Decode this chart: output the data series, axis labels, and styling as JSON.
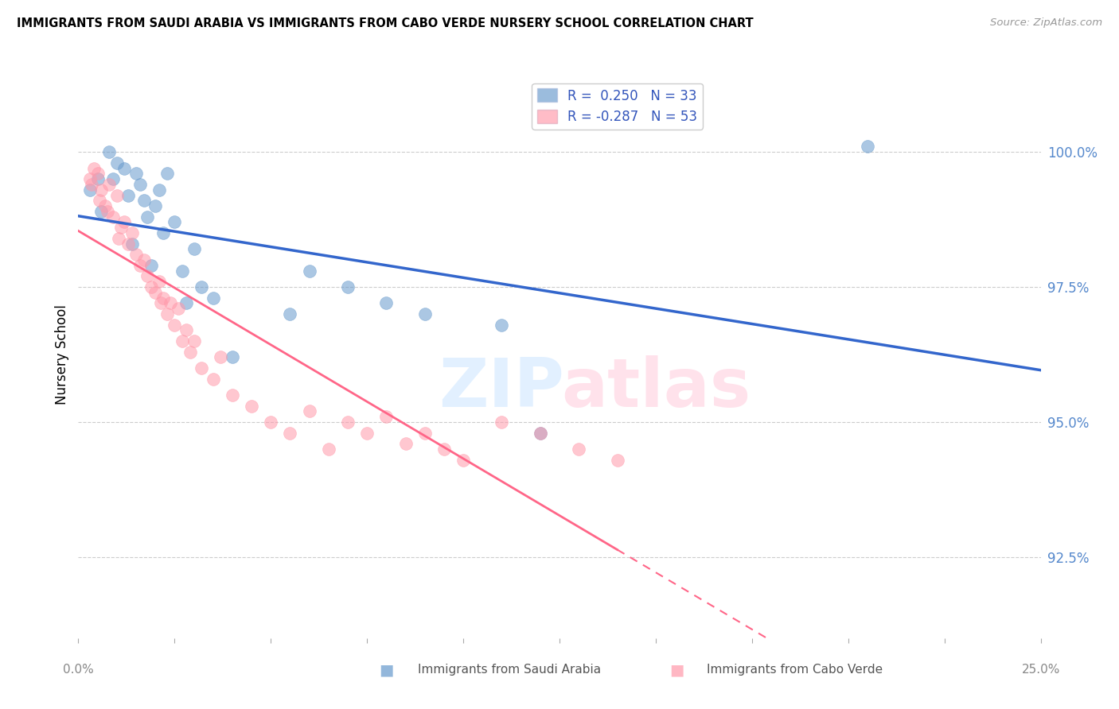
{
  "title": "IMMIGRANTS FROM SAUDI ARABIA VS IMMIGRANTS FROM CABO VERDE NURSERY SCHOOL CORRELATION CHART",
  "source": "Source: ZipAtlas.com",
  "ylabel": "Nursery School",
  "y_ticks": [
    92.5,
    95.0,
    97.5,
    100.0
  ],
  "y_tick_labels": [
    "92.5%",
    "95.0%",
    "97.5%",
    "100.0%"
  ],
  "xlim": [
    0.0,
    25.0
  ],
  "ylim": [
    91.0,
    101.5
  ],
  "R_blue": 0.25,
  "N_blue": 33,
  "R_pink": -0.287,
  "N_pink": 53,
  "legend_label_blue": "Immigrants from Saudi Arabia",
  "legend_label_pink": "Immigrants from Cabo Verde",
  "blue_color": "#6699CC",
  "pink_color": "#FF99AA",
  "blue_line_color": "#3366CC",
  "pink_line_color": "#FF6688",
  "blue_scatter_x": [
    0.5,
    0.8,
    1.0,
    1.2,
    1.3,
    1.5,
    1.6,
    1.7,
    1.8,
    2.0,
    2.1,
    2.2,
    2.3,
    2.5,
    2.7,
    3.0,
    3.2,
    3.5,
    5.5,
    6.0,
    7.0,
    8.0,
    9.0,
    11.0,
    12.0,
    0.3,
    0.6,
    0.9,
    1.4,
    1.9,
    2.8,
    4.0,
    20.5
  ],
  "blue_scatter_y": [
    99.5,
    100.0,
    99.8,
    99.7,
    99.2,
    99.6,
    99.4,
    99.1,
    98.8,
    99.0,
    99.3,
    98.5,
    99.6,
    98.7,
    97.8,
    98.2,
    97.5,
    97.3,
    97.0,
    97.8,
    97.5,
    97.2,
    97.0,
    96.8,
    94.8,
    99.3,
    98.9,
    99.5,
    98.3,
    97.9,
    97.2,
    96.2,
    100.1
  ],
  "pink_scatter_x": [
    0.3,
    0.4,
    0.5,
    0.6,
    0.7,
    0.8,
    0.9,
    1.0,
    1.1,
    1.2,
    1.3,
    1.4,
    1.5,
    1.6,
    1.7,
    1.8,
    1.9,
    2.0,
    2.1,
    2.2,
    2.3,
    2.4,
    2.5,
    2.6,
    2.7,
    2.8,
    2.9,
    3.0,
    3.2,
    3.5,
    3.7,
    4.0,
    4.5,
    5.0,
    5.5,
    6.0,
    6.5,
    7.0,
    7.5,
    8.0,
    8.5,
    9.0,
    9.5,
    10.0,
    11.0,
    12.0,
    13.0,
    14.0,
    0.35,
    0.55,
    0.75,
    1.05,
    2.15
  ],
  "pink_scatter_y": [
    99.5,
    99.7,
    99.6,
    99.3,
    99.0,
    99.4,
    98.8,
    99.2,
    98.6,
    98.7,
    98.3,
    98.5,
    98.1,
    97.9,
    98.0,
    97.7,
    97.5,
    97.4,
    97.6,
    97.3,
    97.0,
    97.2,
    96.8,
    97.1,
    96.5,
    96.7,
    96.3,
    96.5,
    96.0,
    95.8,
    96.2,
    95.5,
    95.3,
    95.0,
    94.8,
    95.2,
    94.5,
    95.0,
    94.8,
    95.1,
    94.6,
    94.8,
    94.5,
    94.3,
    95.0,
    94.8,
    94.5,
    94.3,
    99.4,
    99.1,
    98.9,
    98.4,
    97.2
  ],
  "pink_solid_end_x": 14.0
}
